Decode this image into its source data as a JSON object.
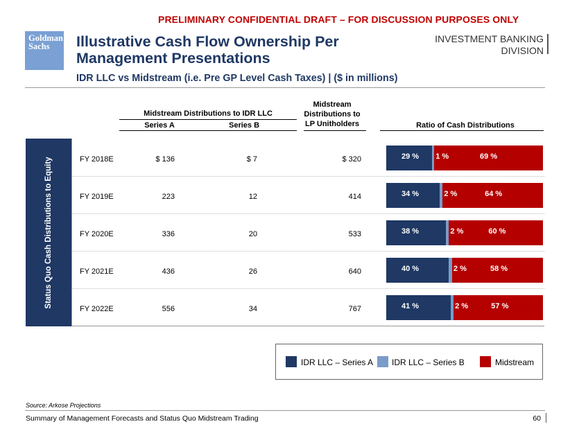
{
  "banner": "PRELIMINARY CONFIDENTIAL DRAFT – FOR DISCUSSION PURPOSES ONLY",
  "logo": {
    "line1": "Goldman",
    "line2": "Sachs"
  },
  "division": {
    "line1": "INVESTMENT BANKING",
    "line2": "DIVISION"
  },
  "title": "Illustrative Cash Flow Ownership Per Management Presentations",
  "subtitle": "IDR LLC vs Midstream (i.e. Pre GP Level Cash Taxes) | ($ in millions)",
  "headers": {
    "idr_group": "Midstream Distributions to IDR LLC",
    "series_a": "Series A",
    "series_b": "Series B",
    "lp_line1": "Midstream",
    "lp_line2": "Distributions to",
    "lp_line3": "LP Unitholders",
    "ratio": "Ratio of Cash Distributions"
  },
  "side_label": "Status Quo Cash Distributions to Equity",
  "rows": [
    {
      "year": "FY 2018E",
      "series_a": "$ 136",
      "series_b": "$ 7",
      "lp": "$ 320",
      "pct_a": 29,
      "pct_b": 1,
      "pct_m": 69,
      "label_a": "29 %",
      "label_b": "1 %",
      "label_m": "69 %"
    },
    {
      "year": "FY 2019E",
      "series_a": "223",
      "series_b": "12",
      "lp": "414",
      "pct_a": 34,
      "pct_b": 2,
      "pct_m": 64,
      "label_a": "34 %",
      "label_b": "2 %",
      "label_m": "64 %"
    },
    {
      "year": "FY 2020E",
      "series_a": "336",
      "series_b": "20",
      "lp": "533",
      "pct_a": 38,
      "pct_b": 2,
      "pct_m": 60,
      "label_a": "38 %",
      "label_b": "2 %",
      "label_m": "60 %"
    },
    {
      "year": "FY 2021E",
      "series_a": "436",
      "series_b": "26",
      "lp": "640",
      "pct_a": 40,
      "pct_b": 2,
      "pct_m": 58,
      "label_a": "40 %",
      "label_b": "2 %",
      "label_m": "58 %"
    },
    {
      "year": "FY 2022E",
      "series_a": "556",
      "series_b": "34",
      "lp": "767",
      "pct_a": 41,
      "pct_b": 2,
      "pct_m": 57,
      "label_a": "41 %",
      "label_b": "2 %",
      "label_m": "57 %"
    }
  ],
  "legend": [
    {
      "label": "IDR LLC  – Series A",
      "color": "#1f3864"
    },
    {
      "label": "IDR LLC – Series B",
      "color": "#7a9cc8"
    },
    {
      "label": "Midstream",
      "color": "#b50000"
    }
  ],
  "chart_data": {
    "type": "bar",
    "stacked": true,
    "orientation": "horizontal",
    "title": "Ratio of Cash Distributions",
    "categories": [
      "FY 2018E",
      "FY 2019E",
      "FY 2020E",
      "FY 2021E",
      "FY 2022E"
    ],
    "series": [
      {
        "name": "IDR LLC  – Series A",
        "values": [
          29,
          34,
          38,
          40,
          41
        ]
      },
      {
        "name": "IDR LLC – Series B",
        "values": [
          1,
          2,
          2,
          2,
          2
        ]
      },
      {
        "name": "Midstream",
        "values": [
          69,
          64,
          60,
          58,
          57
        ]
      }
    ],
    "unit": "%"
  },
  "source": "Source: Arkose Projections",
  "footer": "Summary of Management Forecasts and Status Quo Midstream Trading",
  "page_number": "60"
}
